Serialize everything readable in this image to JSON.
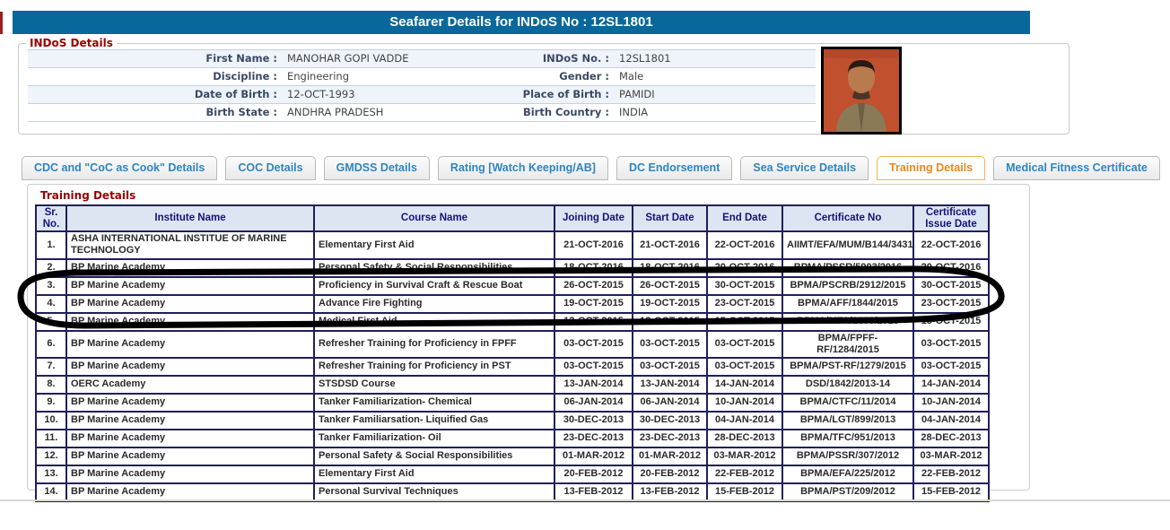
{
  "page": {
    "title": "Seafarer Details for INDoS No : 12SL1801",
    "colors": {
      "title_bar": "#08689B",
      "legend_red": "#990000",
      "tab_blue": "#2E86C1",
      "tab_active_orange": "#E8891D",
      "table_border_navy": "#1F1F5C",
      "table_header_bg": "#DCE5F2",
      "table_header_text": "#14147A",
      "annotation_black": "#000000"
    }
  },
  "indos_details": {
    "legend": "INDoS Details",
    "rows": [
      {
        "l1": "First Name :",
        "v1": "MANOHAR GOPI VADDE",
        "l2": "INDoS No. :",
        "v2": "12SL1801"
      },
      {
        "l1": "Discipline :",
        "v1": "Engineering",
        "l2": "Gender :",
        "v2": "Male"
      },
      {
        "l1": "Date of Birth :",
        "v1": "12-OCT-1993",
        "l2": "Place of Birth :",
        "v2": "PAMIDI"
      },
      {
        "l1": "Birth State :",
        "v1": "ANDHRA PRADESH",
        "l2": "Birth Country :",
        "v2": "INDIA"
      }
    ],
    "photo": "seafarer-photo"
  },
  "tabs": [
    {
      "label": "CDC and \"CoC as Cook\" Details",
      "active": false
    },
    {
      "label": "COC Details",
      "active": false
    },
    {
      "label": "GMDSS Details",
      "active": false
    },
    {
      "label": "Rating [Watch Keeping/AB]",
      "active": false
    },
    {
      "label": "DC Endorsement",
      "active": false
    },
    {
      "label": "Sea Service Details",
      "active": false
    },
    {
      "label": "Training Details",
      "active": true
    },
    {
      "label": "Medical Fitness Certificate",
      "active": false
    }
  ],
  "training": {
    "legend": "Training Details",
    "columns": [
      "Sr. No.",
      "Institute Name",
      "Course Name",
      "Joining Date",
      "Start Date",
      "End Date",
      "Certificate No",
      "Certificate Issue Date"
    ],
    "column_keys": [
      "sr-no",
      "institute-name",
      "course-name",
      "joining-date",
      "start-date",
      "end-date",
      "certificate-no",
      "certificate-issue-date"
    ],
    "rows": [
      [
        "1.",
        "ASHA INTERNATIONAL INSTITUE OF MARINE TECHNOLOGY",
        "Elementary First Aid",
        "21-OCT-2016",
        "21-OCT-2016",
        "22-OCT-2016",
        "AIIMT/EFA/MUM/B144/3431",
        "22-OCT-2016"
      ],
      [
        "2.",
        "BP Marine Academy",
        "Personal Safety & Social Responsibilities",
        "18-OCT-2016",
        "18-OCT-2016",
        "20-OCT-2016",
        "BPMA/PSSR/5903/2016",
        "20-OCT-2016"
      ],
      [
        "3.",
        "BP Marine Academy",
        "Proficiency in Survival Craft & Rescue Boat",
        "26-OCT-2015",
        "26-OCT-2015",
        "30-OCT-2015",
        "BPMA/PSCRB/2912/2015",
        "30-OCT-2015"
      ],
      [
        "4.",
        "BP Marine Academy",
        "Advance Fire Fighting",
        "19-OCT-2015",
        "19-OCT-2015",
        "23-OCT-2015",
        "BPMA/AFF/1844/2015",
        "23-OCT-2015"
      ],
      [
        "5.",
        "BP Marine Academy",
        "Medical First Aid",
        "12-OCT-2015",
        "12-OCT-2015",
        "15-OCT-2015",
        "BPMA/MFA/1383/2015",
        "15-OCT-2015"
      ],
      [
        "6.",
        "BP Marine Academy",
        "Refresher Training for Proficiency in FPFF",
        "03-OCT-2015",
        "03-OCT-2015",
        "03-OCT-2015",
        "BPMA/FPFF-RF/1284/2015",
        "03-OCT-2015"
      ],
      [
        "7.",
        "BP Marine Academy",
        "Refresher Training for Proficiency in PST",
        "03-OCT-2015",
        "03-OCT-2015",
        "03-OCT-2015",
        "BPMA/PST-RF/1279/2015",
        "03-OCT-2015"
      ],
      [
        "8.",
        "OERC Academy",
        "STSDSD Course",
        "13-JAN-2014",
        "13-JAN-2014",
        "14-JAN-2014",
        "DSD/1842/2013-14",
        "14-JAN-2014"
      ],
      [
        "9.",
        "BP Marine Academy",
        "Tanker Familiarization- Chemical",
        "06-JAN-2014",
        "06-JAN-2014",
        "10-JAN-2014",
        "BPMA/CTFC/11/2014",
        "10-JAN-2014"
      ],
      [
        "10.",
        "BP Marine Academy",
        "Tanker Familiarsation- Liquified Gas",
        "30-DEC-2013",
        "30-DEC-2013",
        "04-JAN-2014",
        "BPMA/LGT/899/2013",
        "04-JAN-2014"
      ],
      [
        "11.",
        "BP Marine Academy",
        "Tanker Familiarization- Oil",
        "23-DEC-2013",
        "23-DEC-2013",
        "28-DEC-2013",
        "BPMA/TFC/951/2013",
        "28-DEC-2013"
      ],
      [
        "12.",
        "BP Marine Academy",
        "Personal Safety & Social Responsibilities",
        "01-MAR-2012",
        "01-MAR-2012",
        "03-MAR-2012",
        "BPMA/PSSR/307/2012",
        "03-MAR-2012"
      ],
      [
        "13.",
        "BP Marine Academy",
        "Elementary First Aid",
        "20-FEB-2012",
        "20-FEB-2012",
        "22-FEB-2012",
        "BPMA/EFA/225/2012",
        "22-FEB-2012"
      ],
      [
        "14.",
        "BP Marine Academy",
        "Personal Survival Techniques",
        "13-FEB-2012",
        "13-FEB-2012",
        "15-FEB-2012",
        "BPMA/PST/209/2012",
        "15-FEB-2012"
      ]
    ]
  },
  "annotation": {
    "type": "hand-drawn-oval",
    "highlights_rows": "3-5",
    "color": "#000000"
  }
}
